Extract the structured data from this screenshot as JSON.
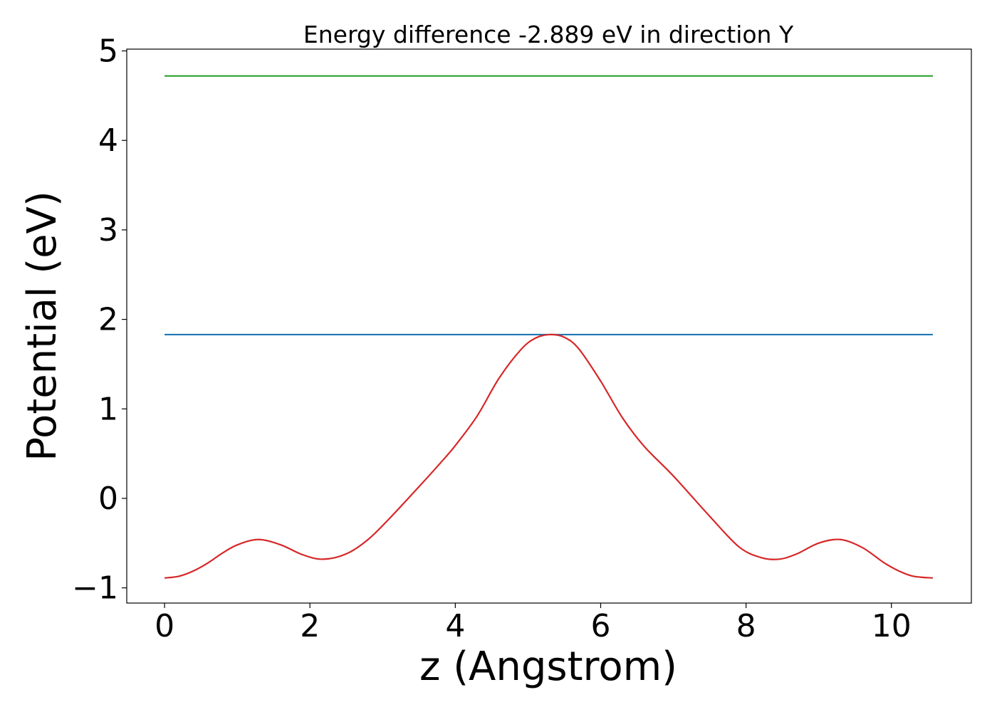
{
  "chart_data": {
    "type": "line",
    "title": "Energy difference -2.889 eV in direction Y",
    "xlabel": "z (Angstrom)",
    "ylabel": "Potential (eV)",
    "xlim": [
      -0.52,
      11.1
    ],
    "ylim": [
      -1.17,
      5.02
    ],
    "x_ticks": [
      0,
      2,
      4,
      6,
      8,
      10
    ],
    "y_ticks": [
      -1,
      0,
      1,
      2,
      3,
      4,
      5
    ],
    "x_tick_labels": [
      "0",
      "2",
      "4",
      "6",
      "8",
      "10"
    ],
    "y_tick_labels": [
      "−1",
      "0",
      "1",
      "2",
      "3",
      "4",
      "5"
    ],
    "grid": false,
    "legend": "none",
    "series": [
      {
        "color": "#2ca02c",
        "x": [
          0,
          10.57
        ],
        "y": [
          4.72,
          4.72
        ]
      },
      {
        "color": "#1f77b4",
        "x": [
          0,
          10.57
        ],
        "y": [
          1.83,
          1.83
        ]
      },
      {
        "color": "#d62728",
        "x": [
          0,
          0.2,
          0.4,
          0.6,
          0.8,
          1.0,
          1.29,
          1.6,
          1.9,
          2.18,
          2.5,
          2.8,
          3.1,
          3.5,
          3.8,
          4.0,
          4.3,
          4.6,
          4.9,
          5.1,
          5.3,
          5.5,
          5.7,
          6.0,
          6.3,
          6.6,
          7.0,
          7.5,
          7.9,
          8.2,
          8.45,
          8.7,
          9.0,
          9.3,
          9.6,
          9.9,
          10.1,
          10.3,
          10.57
        ],
        "y": [
          -0.89,
          -0.87,
          -0.81,
          -0.72,
          -0.61,
          -0.52,
          -0.46,
          -0.52,
          -0.63,
          -0.68,
          -0.62,
          -0.46,
          -0.22,
          0.13,
          0.4,
          0.59,
          0.92,
          1.34,
          1.66,
          1.79,
          1.83,
          1.8,
          1.67,
          1.31,
          0.9,
          0.58,
          0.25,
          -0.2,
          -0.54,
          -0.66,
          -0.68,
          -0.62,
          -0.5,
          -0.46,
          -0.55,
          -0.72,
          -0.81,
          -0.87,
          -0.89
        ]
      }
    ]
  }
}
